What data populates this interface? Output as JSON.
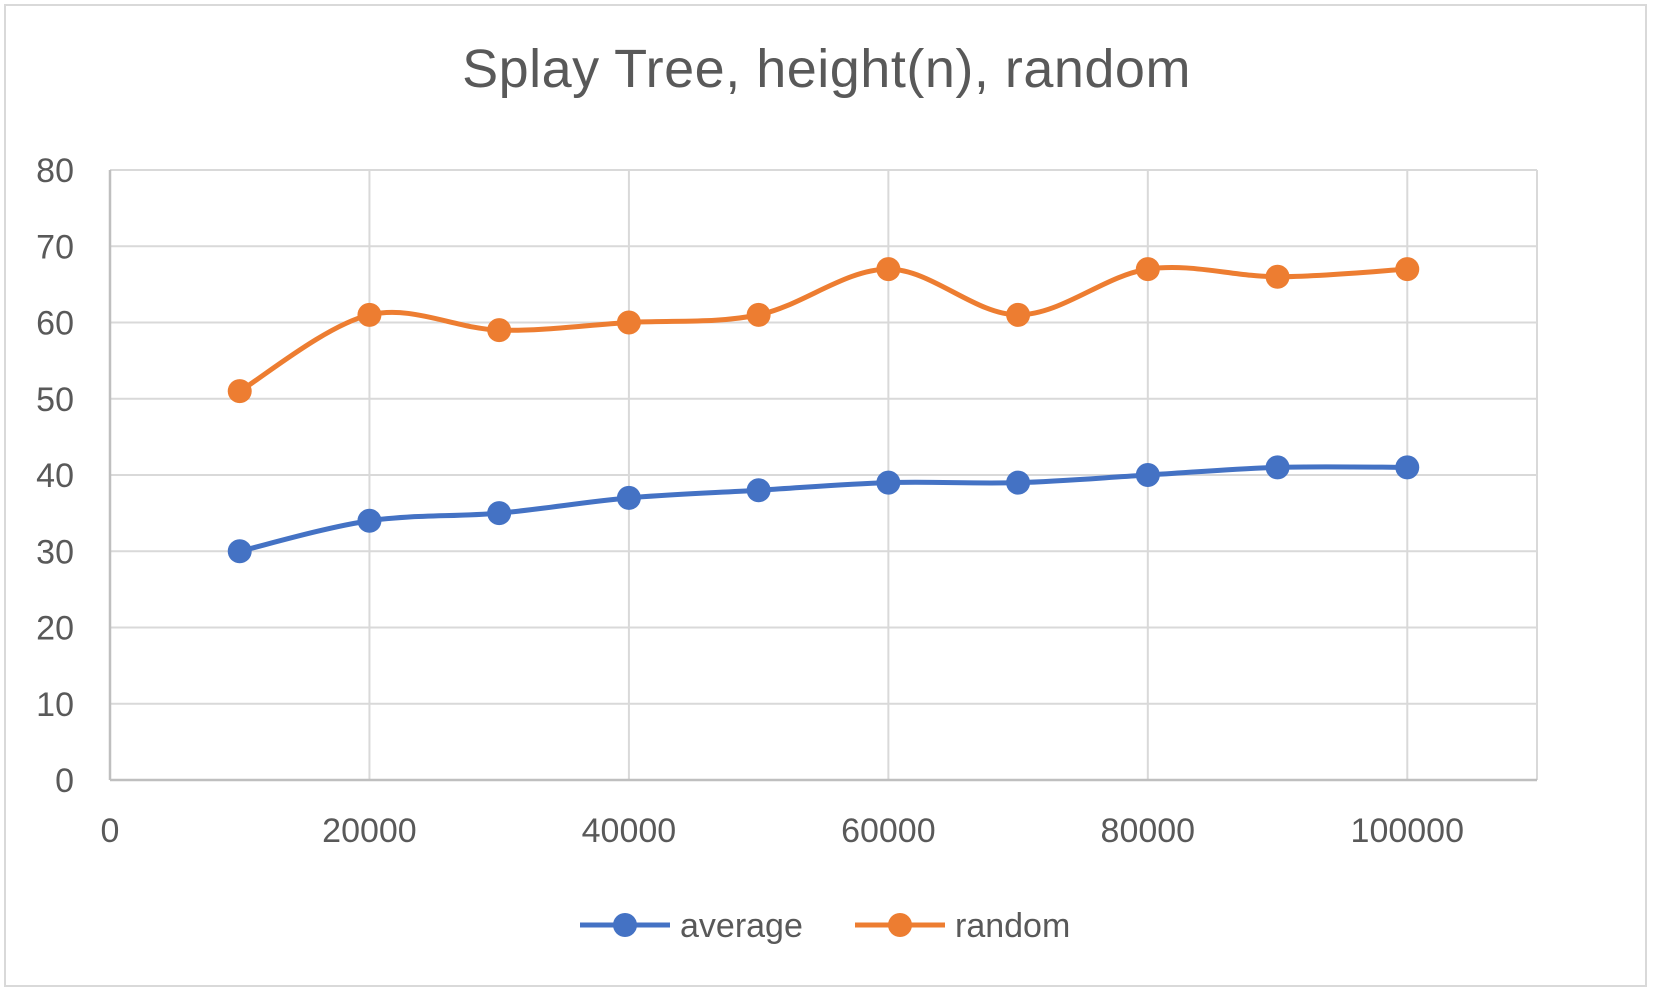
{
  "chart_data": {
    "type": "line",
    "title": "Splay Tree, height(n), random",
    "xlabel": "",
    "ylabel": "",
    "xlim": [
      0,
      110000
    ],
    "ylim": [
      0,
      80
    ],
    "x_ticks": [
      0,
      20000,
      40000,
      60000,
      80000,
      100000
    ],
    "x_tick_labels": [
      "0",
      "20000",
      "40000",
      "60000",
      "80000",
      "100000"
    ],
    "y_ticks": [
      0,
      10,
      20,
      30,
      40,
      50,
      60,
      70,
      80
    ],
    "y_tick_labels": [
      "0",
      "10",
      "20",
      "30",
      "40",
      "50",
      "60",
      "70",
      "80"
    ],
    "grid": true,
    "smooth": true,
    "legend_position": "bottom",
    "x": [
      10000,
      20000,
      30000,
      40000,
      50000,
      60000,
      70000,
      80000,
      90000,
      100000
    ],
    "series": [
      {
        "name": "average",
        "color": "#4472c4",
        "values": [
          30,
          34,
          35,
          37,
          38,
          39,
          39,
          40,
          41,
          41
        ]
      },
      {
        "name": "random",
        "color": "#ed7d31",
        "values": [
          51,
          61,
          59,
          60,
          61,
          67,
          61,
          67,
          66,
          67
        ]
      }
    ]
  }
}
